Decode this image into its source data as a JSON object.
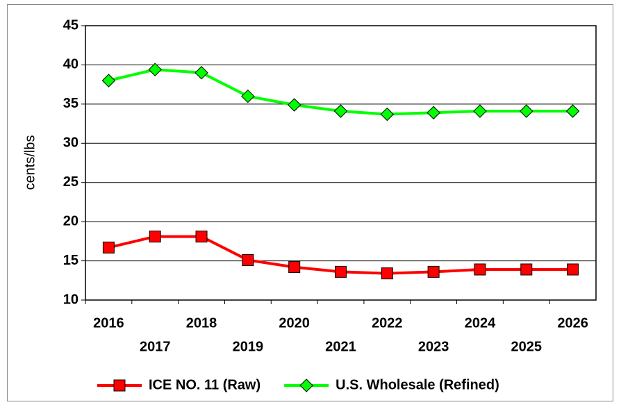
{
  "chart_data": {
    "type": "line",
    "y_label": "cents/lbs",
    "categories": [
      "2016",
      "2017",
      "2018",
      "2019",
      "2020",
      "2021",
      "2022",
      "2023",
      "2024",
      "2025",
      "2026"
    ],
    "series": [
      {
        "name": "ICE NO. 11 (Raw)",
        "color": "#ff0000",
        "marker": "square",
        "values": [
          16.7,
          18.1,
          18.1,
          15.1,
          14.2,
          13.6,
          13.4,
          13.6,
          13.9,
          13.9,
          13.9
        ]
      },
      {
        "name": "U.S. Wholesale (Refined)",
        "color": "#00ff00",
        "marker": "diamond",
        "values": [
          38.0,
          39.4,
          39.0,
          36.0,
          34.9,
          34.1,
          33.7,
          33.9,
          34.1,
          34.1,
          34.1
        ]
      }
    ],
    "ylim": [
      10,
      45
    ],
    "yticks": [
      10,
      15,
      20,
      25,
      30,
      35,
      40,
      45
    ],
    "grid": true,
    "legend": "bottom"
  }
}
